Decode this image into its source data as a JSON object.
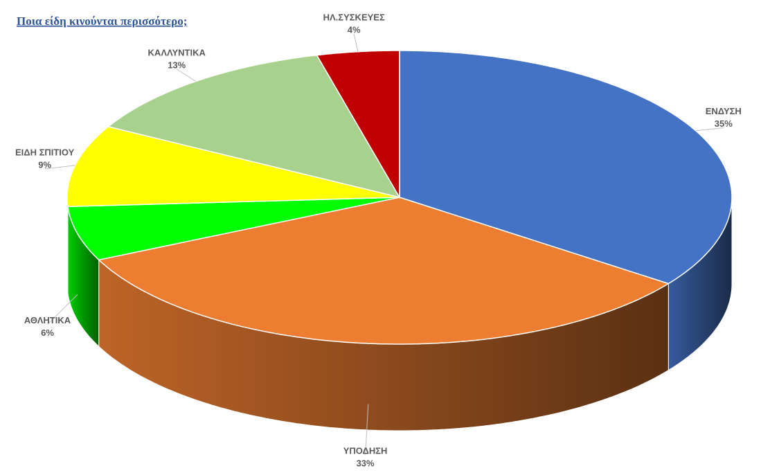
{
  "chart_data": {
    "type": "pie",
    "title": "Ποια είδη κινούνται περισσότερο;",
    "categories": [
      "ΕΝΔΥΣΗ",
      "ΥΠΟΔΗΣΗ",
      "ΑΘΛΗΤΙΚΑ",
      "ΕΙΔΗ ΣΠΙΤΙΟΥ",
      "ΚΑΛΛΥΝΤΙΚΑ",
      "ΗΛ.ΣΥΣΚΕΥΕΣ"
    ],
    "values": [
      35,
      33,
      6,
      9,
      13,
      4
    ],
    "value_labels": [
      "35%",
      "33%",
      "6%",
      "9%",
      "13%",
      "4%"
    ],
    "colors": [
      "#4472c4",
      "#ed7d31",
      "#00ff00",
      "#ffff00",
      "#a9d18e",
      "#c00000"
    ]
  }
}
